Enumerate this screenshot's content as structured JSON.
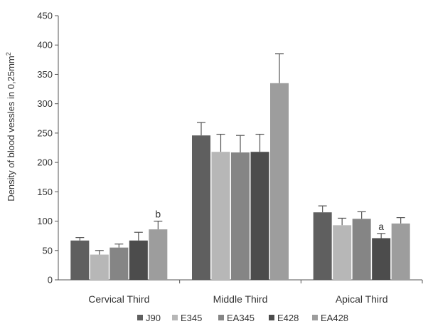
{
  "chart_data": {
    "type": "bar",
    "title": "",
    "xlabel": "",
    "ylabel": "Density of blood vessles in 0,25mm",
    "ylabel_superscript": "2",
    "ylim": [
      0,
      450
    ],
    "yticks": [
      0,
      50,
      100,
      150,
      200,
      250,
      300,
      350,
      400,
      450
    ],
    "categories": [
      "Cervical Third",
      "Middle Third",
      "Apical Third"
    ],
    "series": [
      {
        "name": "J90",
        "color": "#5f5f5f",
        "values": [
          67,
          246,
          115
        ],
        "errors": [
          5,
          22,
          11
        ]
      },
      {
        "name": "E345",
        "color": "#b7b7b7",
        "values": [
          43,
          218,
          93
        ],
        "errors": [
          7,
          30,
          12
        ]
      },
      {
        "name": "EA345",
        "color": "#858585",
        "values": [
          55,
          217,
          104
        ],
        "errors": [
          6,
          29,
          12
        ]
      },
      {
        "name": "E428",
        "color": "#4c4c4c",
        "values": [
          67,
          218,
          71
        ],
        "errors": [
          14,
          30,
          8
        ]
      },
      {
        "name": "EA428",
        "color": "#9d9d9d",
        "values": [
          86,
          335,
          96
        ],
        "errors": [
          14,
          50,
          10
        ]
      }
    ],
    "annotations": [
      {
        "text": "b",
        "series": "EA428",
        "category": "Cervical Third"
      },
      {
        "text": "a",
        "series": "E428",
        "category": "Apical Third"
      }
    ],
    "grid": false,
    "legend_position": "bottom"
  }
}
